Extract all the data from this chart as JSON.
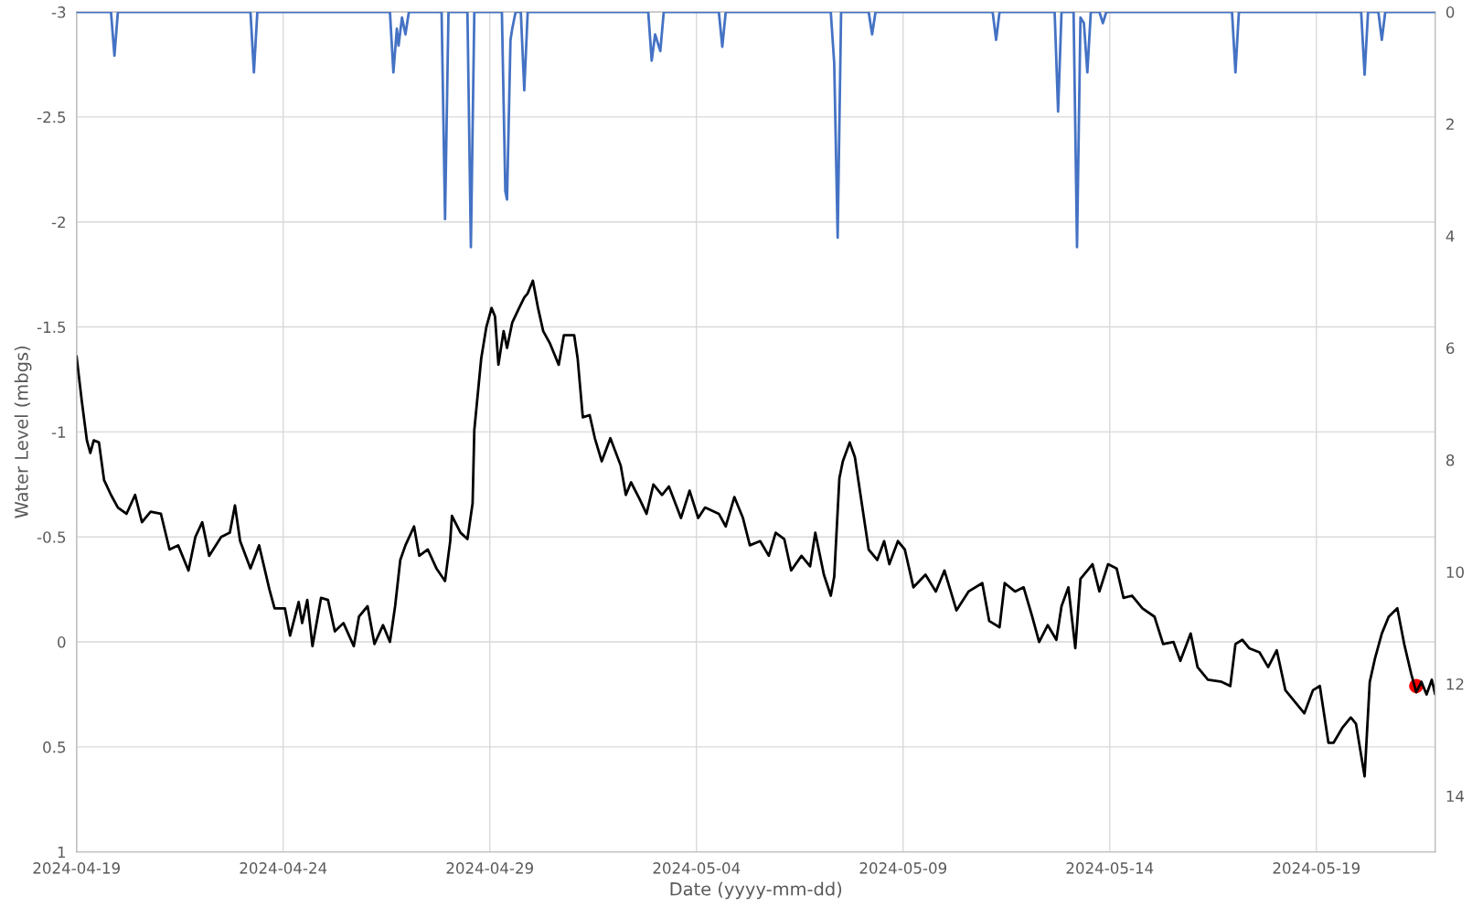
{
  "chart_data": {
    "type": "line",
    "xlabel": "Date (yyyy-mm-dd)",
    "ylabel": "Water Level (mbgs)",
    "xlim": [
      "2024-04-19",
      "2024-05-21T21:00"
    ],
    "xticks": [
      "2024-04-19",
      "2024-04-24",
      "2024-04-29",
      "2024-05-04",
      "2024-05-09",
      "2024-05-14",
      "2024-05-19"
    ],
    "ylim": [
      1,
      -3
    ],
    "yticks": [
      -3,
      -2.5,
      -2,
      -1.5,
      -1,
      -0.5,
      0,
      0.5,
      1
    ],
    "y2lim": [
      15,
      0
    ],
    "y2ticks": [
      0,
      2,
      4,
      6,
      8,
      10,
      12,
      14
    ],
    "grid": true,
    "line_style": "solid",
    "series": [
      {
        "axis": "y2",
        "color": "#4472c4",
        "x": [
          "2024-04-19",
          "2024-04-19T20:00",
          "2024-04-19T22:00",
          "2024-04-20T00:00",
          "2024-04-23T05:00",
          "2024-04-23T07:00",
          "2024-04-23T09:00",
          "2024-04-26T14:00",
          "2024-04-26T16:00",
          "2024-04-26T18:00",
          "2024-04-26T19:00",
          "2024-04-26T21:00",
          "2024-04-26T23:00",
          "2024-04-27T01:00",
          "2024-04-27T20:00",
          "2024-04-27T22:00",
          "2024-04-28T00:00",
          "2024-04-28T11:00",
          "2024-04-28T13:00",
          "2024-04-28T15:00",
          "2024-04-29T07:00",
          "2024-04-29T09:00",
          "2024-04-29T10:00",
          "2024-04-29T12:00",
          "2024-04-29T13:00",
          "2024-04-29T15:00",
          "2024-04-29T18:00",
          "2024-04-29T20:00",
          "2024-04-29T22:00",
          "2024-05-02T20:00",
          "2024-05-02T22:00",
          "2024-05-03T00:00",
          "2024-05-03T03:00",
          "2024-05-03T05:00",
          "2024-05-04T13:00",
          "2024-05-04T15:00",
          "2024-05-04T17:00",
          "2024-05-07T06:00",
          "2024-05-07T08:00",
          "2024-05-07T10:00",
          "2024-05-07T12:00",
          "2024-05-08T04:00",
          "2024-05-08T06:00",
          "2024-05-08T08:00",
          "2024-05-11T04:00",
          "2024-05-11T06:00",
          "2024-05-11T08:00",
          "2024-05-12T16:00",
          "2024-05-12T18:00",
          "2024-05-12T20:00",
          "2024-05-13T03:00",
          "2024-05-13T05:00",
          "2024-05-13T07:00",
          "2024-05-13T09:00",
          "2024-05-13T11:00",
          "2024-05-13T13:00",
          "2024-05-13T18:00",
          "2024-05-13T20:00",
          "2024-05-13T22:00",
          "2024-05-16T23:00",
          "2024-05-17T01:00",
          "2024-05-17T03:00",
          "2024-05-20T02:00",
          "2024-05-20T04:00",
          "2024-05-20T06:00",
          "2024-05-20T12:00",
          "2024-05-20T14:00",
          "2024-05-20T16:00",
          "2024-05-21T21:00"
        ],
        "values": [
          0,
          0,
          0.78,
          0,
          0,
          1.08,
          0,
          0,
          1.08,
          0.3,
          0.6,
          0.1,
          0.4,
          0,
          0,
          3.7,
          0,
          0,
          4.2,
          0,
          0,
          3.2,
          3.35,
          0.5,
          0.3,
          0,
          0,
          1.4,
          0,
          0,
          0.87,
          0.4,
          0.7,
          0,
          0,
          0.62,
          0,
          0,
          0.92,
          4.03,
          0,
          0,
          0.4,
          0,
          0,
          0.5,
          0,
          0,
          1.78,
          0,
          0,
          4.2,
          0.1,
          0.2,
          1.08,
          0,
          0,
          0.2,
          0,
          0,
          1.08,
          0,
          0,
          1.12,
          0,
          0,
          0.5,
          0,
          0
        ]
      },
      {
        "axis": "y",
        "color": "#000000",
        "x": [
          "2024-04-19T00:00",
          "2024-04-19T03:00",
          "2024-04-19T06:00",
          "2024-04-19T08:00",
          "2024-04-19T10:00",
          "2024-04-19T13:00",
          "2024-04-19T16:00",
          "2024-04-19T20:00",
          "2024-04-20T00:00",
          "2024-04-20T05:00",
          "2024-04-20T10:00",
          "2024-04-20T14:00",
          "2024-04-20T19:00",
          "2024-04-21T01:00",
          "2024-04-21T06:00",
          "2024-04-21T11:00",
          "2024-04-21T17:00",
          "2024-04-21T21:00",
          "2024-04-22T01:00",
          "2024-04-22T05:00",
          "2024-04-22T12:00",
          "2024-04-22T17:00",
          "2024-04-22T20:00",
          "2024-04-22T23:00",
          "2024-04-23T05:00",
          "2024-04-23T10:00",
          "2024-04-23T16:00",
          "2024-04-23T19:00",
          "2024-04-24T01:00",
          "2024-04-24T04:00",
          "2024-04-24T09:00",
          "2024-04-24T11:00",
          "2024-04-24T14:00",
          "2024-04-24T17:00",
          "2024-04-24T22:00",
          "2024-04-25T02:00",
          "2024-04-25T06:00",
          "2024-04-25T11:00",
          "2024-04-25T17:00",
          "2024-04-25T20:00",
          "2024-04-26T01:00",
          "2024-04-26T05:00",
          "2024-04-26T10:00",
          "2024-04-26T14:00",
          "2024-04-26T17:00",
          "2024-04-26T20:00",
          "2024-04-26T23:00",
          "2024-04-27T04:00",
          "2024-04-27T07:00",
          "2024-04-27T12:00",
          "2024-04-27T17:00",
          "2024-04-27T22:00",
          "2024-04-28T01:00",
          "2024-04-28T02:00",
          "2024-04-28T07:00",
          "2024-04-28T11:00",
          "2024-04-28T14:00",
          "2024-04-28T15:00",
          "2024-04-28T19:00",
          "2024-04-28T22:00",
          "2024-04-29T01:00",
          "2024-04-29T03:00",
          "2024-04-29T05:00",
          "2024-04-29T08:00",
          "2024-04-29T10:00",
          "2024-04-29T13:00",
          "2024-04-29T17:00",
          "2024-04-29T20:00",
          "2024-04-29T22:00",
          "2024-04-30T01:00",
          "2024-04-30T04:00",
          "2024-04-30T07:00",
          "2024-04-30T11:00",
          "2024-04-30T16:00",
          "2024-04-30T19:00",
          "2024-05-01T01:00",
          "2024-05-01T03:00",
          "2024-05-01T06:00",
          "2024-05-01T10:00",
          "2024-05-01T13:00",
          "2024-05-01T17:00",
          "2024-05-01T22:00",
          "2024-05-02T04:00",
          "2024-05-02T07:00",
          "2024-05-02T10:00",
          "2024-05-02T15:00",
          "2024-05-02T19:00",
          "2024-05-02T23:00",
          "2024-05-03T04:00",
          "2024-05-03T08:00",
          "2024-05-03T15:00",
          "2024-05-03T20:00",
          "2024-05-04T01:00",
          "2024-05-04T05:00",
          "2024-05-04T13:00",
          "2024-05-04T17:00",
          "2024-05-04T22:00",
          "2024-05-05T03:00",
          "2024-05-05T07:00",
          "2024-05-05T13:00",
          "2024-05-05T18:00",
          "2024-05-05T22:00",
          "2024-05-06T03:00",
          "2024-05-06T07:00",
          "2024-05-06T13:00",
          "2024-05-06T18:00",
          "2024-05-06T21:00",
          "2024-05-07T02:00",
          "2024-05-07T06:00",
          "2024-05-07T08:00",
          "2024-05-07T11:00",
          "2024-05-07T13:00",
          "2024-05-07T17:00",
          "2024-05-07T20:00",
          "2024-05-08T00:00",
          "2024-05-08T04:00",
          "2024-05-08T09:00",
          "2024-05-08T13:00",
          "2024-05-08T16:00",
          "2024-05-08T21:00",
          "2024-05-09T01:00",
          "2024-05-09T06:00",
          "2024-05-09T13:00",
          "2024-05-09T19:00",
          "2024-05-10T00:00",
          "2024-05-10T07:00",
          "2024-05-10T14:00",
          "2024-05-10T22:00",
          "2024-05-11T02:00",
          "2024-05-11T08:00",
          "2024-05-11T11:00",
          "2024-05-11T17:00",
          "2024-05-11T22:00",
          "2024-05-12T03:00",
          "2024-05-12T07:00",
          "2024-05-12T12:00",
          "2024-05-12T17:00",
          "2024-05-12T20:00",
          "2024-05-13T00:00",
          "2024-05-13T04:00",
          "2024-05-13T07:00",
          "2024-05-13T14:00",
          "2024-05-13T18:00",
          "2024-05-13T23:00",
          "2024-05-14T04:00",
          "2024-05-14T08:00",
          "2024-05-14T13:00",
          "2024-05-14T19:00",
          "2024-05-15T02:00",
          "2024-05-15T07:00",
          "2024-05-15T13:00",
          "2024-05-15T17:00",
          "2024-05-15T23:00",
          "2024-05-16T03:00",
          "2024-05-16T09:00",
          "2024-05-16T17:00",
          "2024-05-16T22:00",
          "2024-05-17T01:00",
          "2024-05-17T05:00",
          "2024-05-17T09:00",
          "2024-05-17T15:00",
          "2024-05-17T20:00",
          "2024-05-18T01:00",
          "2024-05-18T06:00",
          "2024-05-18T11:00",
          "2024-05-18T17:00",
          "2024-05-18T22:00",
          "2024-05-19T02:00",
          "2024-05-19T07:00",
          "2024-05-19T10:00",
          "2024-05-19T15:00",
          "2024-05-19T20:00",
          "2024-05-19T23:00",
          "2024-05-20T04:00",
          "2024-05-20T07:00",
          "2024-05-20T10:00",
          "2024-05-20T14:00",
          "2024-05-20T18:00",
          "2024-05-20T23:00",
          "2024-05-21T03:00",
          "2024-05-21T07:00",
          "2024-05-21T10:00",
          "2024-05-21T13:00",
          "2024-05-21T16:00",
          "2024-05-21T19:00",
          "2024-05-21T21:00"
        ],
        "values": [
          -1.36,
          -1.15,
          -0.96,
          -0.9,
          -0.96,
          -0.95,
          -0.77,
          -0.7,
          -0.64,
          -0.61,
          -0.7,
          -0.57,
          -0.62,
          -0.61,
          -0.44,
          -0.46,
          -0.34,
          -0.5,
          -0.57,
          -0.41,
          -0.5,
          -0.52,
          -0.65,
          -0.48,
          -0.35,
          -0.46,
          -0.25,
          -0.16,
          -0.16,
          -0.03,
          -0.19,
          -0.09,
          -0.2,
          0.02,
          -0.21,
          -0.2,
          -0.05,
          -0.09,
          0.02,
          -0.12,
          -0.17,
          0.01,
          -0.08,
          0,
          -0.17,
          -0.39,
          -0.46,
          -0.55,
          -0.41,
          -0.44,
          -0.35,
          -0.29,
          -0.48,
          -0.6,
          -0.52,
          -0.49,
          -0.66,
          -1.01,
          -1.35,
          -1.5,
          -1.59,
          -1.55,
          -1.32,
          -1.48,
          -1.4,
          -1.52,
          -1.59,
          -1.64,
          -1.66,
          -1.72,
          -1.59,
          -1.48,
          -1.42,
          -1.32,
          -1.46,
          -1.46,
          -1.35,
          -1.07,
          -1.08,
          -0.97,
          -0.86,
          -0.97,
          -0.84,
          -0.7,
          -0.76,
          -0.68,
          -0.61,
          -0.75,
          -0.7,
          -0.74,
          -0.59,
          -0.72,
          -0.59,
          -0.64,
          -0.61,
          -0.55,
          -0.69,
          -0.59,
          -0.46,
          -0.48,
          -0.41,
          -0.52,
          -0.49,
          -0.34,
          -0.41,
          -0.36,
          -0.52,
          -0.32,
          -0.22,
          -0.31,
          -0.78,
          -0.86,
          -0.95,
          -0.88,
          -0.66,
          -0.44,
          -0.39,
          -0.48,
          -0.37,
          -0.48,
          -0.44,
          -0.26,
          -0.32,
          -0.24,
          -0.34,
          -0.15,
          -0.24,
          -0.28,
          -0.1,
          -0.07,
          -0.28,
          -0.24,
          -0.26,
          -0.12,
          0,
          -0.08,
          -0.01,
          -0.17,
          -0.26,
          0.03,
          -0.3,
          -0.37,
          -0.24,
          -0.37,
          -0.35,
          -0.21,
          -0.22,
          -0.16,
          -0.12,
          0.01,
          0,
          0.09,
          -0.04,
          0.12,
          0.18,
          0.19,
          0.21,
          0.01,
          -0.01,
          0.03,
          0.05,
          0.12,
          0.04,
          0.23,
          0.28,
          0.34,
          0.23,
          0.21,
          0.48,
          0.48,
          0.41,
          0.36,
          0.39,
          0.64,
          0.19,
          0.08,
          -0.04,
          -0.12,
          -0.16,
          0.01,
          0.15,
          0.24,
          0.19,
          0.25,
          0.18,
          0.25
        ]
      },
      {
        "type": "scatter",
        "axis": "y",
        "color": "#ff0000",
        "marker": "circle",
        "x": [
          "2024-05-21T10:00"
        ],
        "values": [
          0.21
        ]
      }
    ]
  }
}
